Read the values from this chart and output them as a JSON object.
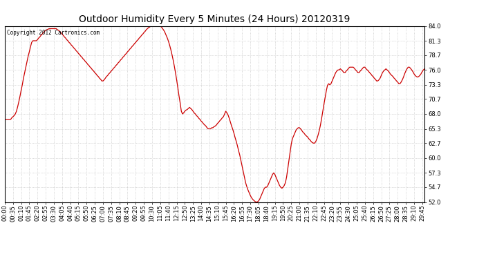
{
  "title": "Outdoor Humidity Every 5 Minutes (24 Hours) 20120319",
  "copyright_text": "Copyright 2012 Cartronics.com",
  "line_color": "#cc0000",
  "background_color": "#ffffff",
  "plot_bg_color": "#ffffff",
  "grid_color": "#bbbbbb",
  "ylim": [
    52.0,
    84.0
  ],
  "yticks": [
    52.0,
    54.7,
    57.3,
    60.0,
    62.7,
    65.3,
    68.0,
    70.7,
    73.3,
    76.0,
    78.7,
    81.3,
    84.0
  ],
  "title_fontsize": 10,
  "tick_fontsize": 6.0,
  "humidity_data": [
    67.0,
    67.0,
    67.0,
    67.0,
    67.0,
    67.0,
    67.3,
    67.5,
    67.7,
    68.0,
    68.5,
    69.3,
    70.2,
    71.2,
    72.3,
    73.3,
    74.5,
    75.5,
    76.5,
    77.5,
    78.5,
    79.3,
    80.2,
    81.0,
    81.3,
    81.3,
    81.3,
    81.3,
    81.5,
    81.8,
    82.0,
    82.3,
    82.5,
    82.8,
    83.0,
    83.2,
    83.3,
    83.4,
    83.5,
    83.5,
    83.5,
    83.5,
    83.5,
    83.5,
    83.5,
    83.3,
    83.2,
    83.0,
    82.8,
    82.5,
    82.3,
    82.0,
    81.8,
    81.5,
    81.3,
    81.0,
    80.8,
    80.5,
    80.3,
    80.0,
    79.8,
    79.5,
    79.3,
    79.0,
    78.8,
    78.5,
    78.3,
    78.0,
    77.8,
    77.5,
    77.3,
    77.0,
    76.8,
    76.5,
    76.3,
    76.0,
    75.8,
    75.5,
    75.3,
    75.0,
    74.8,
    74.5,
    74.3,
    74.0,
    74.0,
    74.2,
    74.5,
    74.8,
    75.0,
    75.3,
    75.5,
    75.8,
    76.0,
    76.3,
    76.5,
    76.8,
    77.0,
    77.3,
    77.5,
    77.8,
    78.0,
    78.3,
    78.5,
    78.8,
    79.0,
    79.3,
    79.5,
    79.8,
    80.0,
    80.3,
    80.5,
    80.8,
    81.0,
    81.3,
    81.5,
    81.8,
    82.0,
    82.3,
    82.5,
    82.8,
    83.0,
    83.3,
    83.5,
    83.7,
    83.8,
    84.0,
    84.0,
    84.0,
    84.0,
    84.0,
    84.0,
    84.0,
    84.0,
    84.0,
    83.8,
    83.5,
    83.2,
    82.8,
    82.3,
    81.8,
    81.2,
    80.5,
    79.7,
    78.8,
    77.8,
    76.7,
    75.5,
    74.2,
    72.8,
    71.3,
    70.0,
    68.5,
    68.0,
    68.2,
    68.5,
    68.7,
    68.8,
    69.0,
    69.2,
    69.0,
    68.8,
    68.5,
    68.2,
    68.0,
    67.7,
    67.5,
    67.2,
    67.0,
    66.7,
    66.5,
    66.2,
    66.0,
    65.8,
    65.5,
    65.3,
    65.3,
    65.3,
    65.5,
    65.5,
    65.7,
    65.8,
    66.0,
    66.3,
    66.5,
    66.8,
    67.0,
    67.3,
    67.5,
    68.0,
    68.5,
    68.2,
    67.8,
    67.2,
    66.5,
    65.8,
    65.2,
    64.5,
    63.7,
    63.0,
    62.2,
    61.3,
    60.5,
    59.5,
    58.5,
    57.5,
    56.5,
    55.5,
    54.8,
    54.2,
    53.7,
    53.2,
    52.8,
    52.5,
    52.3,
    52.1,
    52.0,
    52.0,
    52.2,
    52.5,
    53.0,
    53.5,
    54.0,
    54.5,
    54.7,
    54.7,
    55.0,
    55.5,
    56.0,
    56.5,
    57.0,
    57.3,
    57.0,
    56.5,
    56.0,
    55.5,
    55.0,
    54.7,
    54.5,
    54.7,
    55.0,
    55.5,
    56.5,
    58.0,
    59.5,
    61.0,
    62.5,
    63.5,
    64.0,
    64.5,
    65.0,
    65.3,
    65.5,
    65.5,
    65.3,
    65.0,
    64.7,
    64.5,
    64.2,
    64.0,
    63.8,
    63.5,
    63.3,
    63.0,
    62.8,
    62.7,
    62.7,
    63.0,
    63.5,
    64.2,
    65.0,
    66.0,
    67.2,
    68.5,
    69.8,
    71.0,
    72.2,
    73.2,
    73.5,
    73.3,
    73.5,
    74.0,
    74.5,
    75.0,
    75.5,
    75.8,
    76.0,
    76.0,
    76.2,
    76.0,
    75.8,
    75.5,
    75.5,
    75.8,
    76.0,
    76.3,
    76.5,
    76.5,
    76.5,
    76.5,
    76.3,
    76.0,
    75.8,
    75.5,
    75.5,
    75.8,
    76.0,
    76.3,
    76.5,
    76.5,
    76.2,
    76.0,
    75.8,
    75.5,
    75.3,
    75.0,
    74.8,
    74.5,
    74.3,
    74.0,
    74.0,
    74.2,
    74.5,
    75.0,
    75.5,
    75.8,
    76.0,
    76.2,
    76.0,
    75.8,
    75.5,
    75.2,
    75.0,
    74.8,
    74.5,
    74.3,
    74.0,
    73.8,
    73.5,
    73.5,
    73.8,
    74.2,
    74.7,
    75.3,
    75.8,
    76.2,
    76.5,
    76.5,
    76.3,
    76.0,
    75.7,
    75.3,
    75.0,
    74.8,
    74.7,
    74.8,
    75.0,
    75.3,
    75.7,
    76.0,
    76.2
  ]
}
